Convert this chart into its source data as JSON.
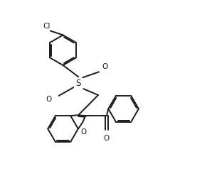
{
  "background": "#ffffff",
  "line_color": "#1a1a1a",
  "line_width": 1.4,
  "dbo": 0.018,
  "figsize": [
    2.84,
    2.72
  ],
  "dpi": 100,
  "xlim": [
    0.0,
    2.84
  ],
  "ylim": [
    0.0,
    2.72
  ]
}
